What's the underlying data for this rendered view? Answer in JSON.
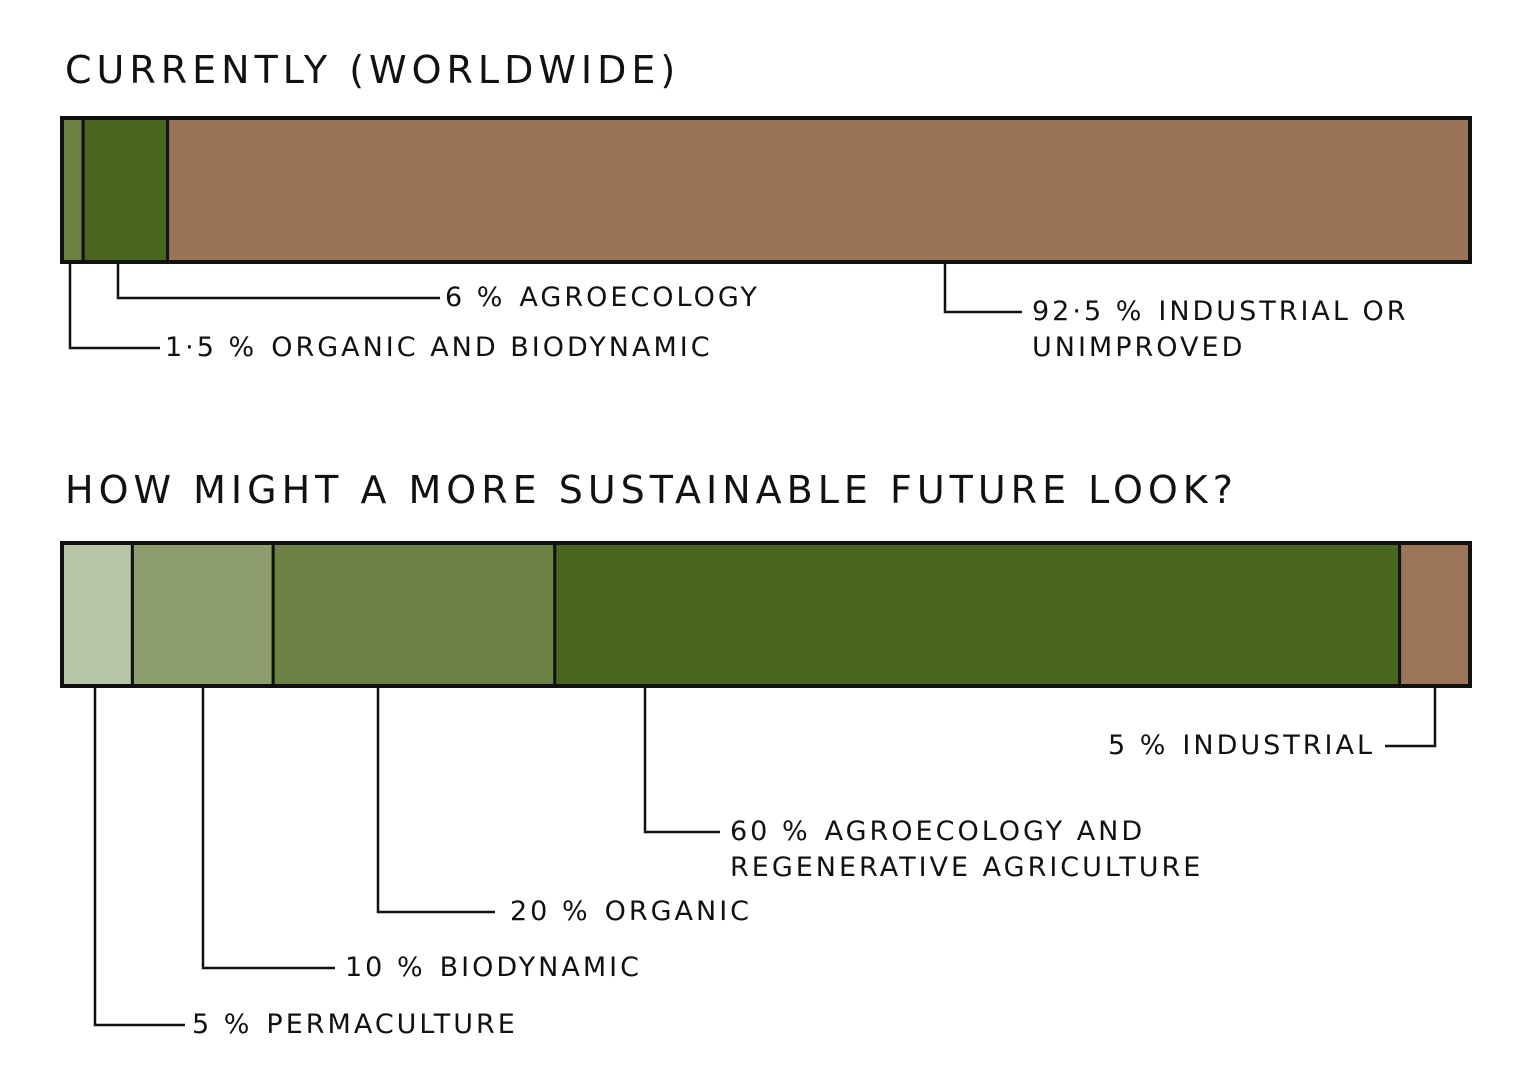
{
  "chart_data": [
    {
      "type": "bar",
      "title": "CURRENTLY (WORLDWIDE)",
      "series": [
        {
          "name": "ORGANIC AND BIODYNAMIC",
          "color": "#6b8140",
          "values": [
            1.5
          ],
          "value_labels": [
            "1·5 %"
          ]
        },
        {
          "name": "AGROECOLOGY",
          "color": "#4a651e",
          "values": [
            6
          ],
          "value_labels": [
            "6 %"
          ]
        },
        {
          "name": "INDUSTRIAL OR UNIMPROVED",
          "color": "#9a7359",
          "values": [
            92.5
          ],
          "value_labels": [
            "92·5 %"
          ]
        }
      ]
    },
    {
      "type": "bar",
      "title": "HOW MIGHT A MORE SUSTAINABLE FUTURE LOOK?",
      "series": [
        {
          "name": "PERMACULTURE",
          "color": "#b8c4a7",
          "values": [
            5
          ],
          "value_labels": [
            "5 %"
          ]
        },
        {
          "name": "BIODYNAMIC",
          "color": "#8e9d6c",
          "values": [
            10
          ],
          "value_labels": [
            "10 %"
          ]
        },
        {
          "name": "ORGANIC",
          "color": "#6e8245",
          "values": [
            20
          ],
          "value_labels": [
            "20 %"
          ]
        },
        {
          "name": "AGROECOLOGY AND REGENERATIVE AGRICULTURE",
          "color": "#4a651e",
          "values": [
            60
          ],
          "value_labels": [
            "60 %"
          ]
        },
        {
          "name": "INDUSTRIAL",
          "color": "#9c7459",
          "values": [
            5
          ],
          "value_labels": [
            "5 %"
          ]
        }
      ]
    }
  ]
}
